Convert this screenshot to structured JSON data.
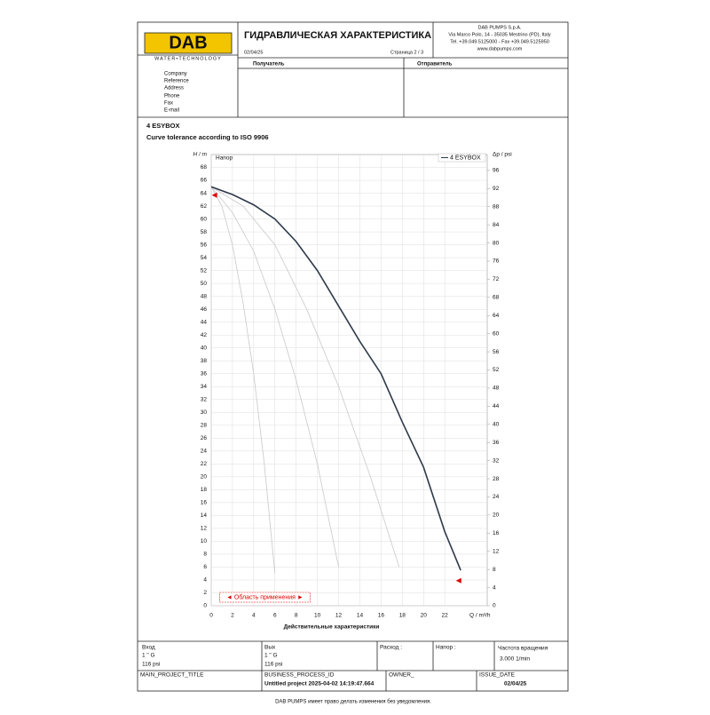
{
  "header": {
    "logo": "DAB",
    "logo_subtitle": "WATER•TECHNOLOGY",
    "title": "ГИДРАВЛИЧЕСКАЯ ХАРАКТЕРИСТИКА",
    "date": "02/04/25",
    "page": "Страница 2 / 3",
    "company_lines": [
      "DAB PUMPS S.p.A.",
      "Via Marco Polo, 14 - 35035 Mestrino (PD), Italy",
      "Tel. +39.049.5125000 - Fax +39.049.5125950",
      "www.dabpumps.com"
    ]
  },
  "recipient_label": "Получатель",
  "sender_label": "Отправитель",
  "contact_fields": [
    "Company",
    "Reference",
    "Address",
    "Phone",
    "Fax",
    "E-mail"
  ],
  "product": "4 ESYBOX",
  "tolerance_note": "Curve tolerance according to ISO 9906",
  "chart_data": {
    "type": "line",
    "x_label": "Q / m³/h",
    "y_label": "H / m",
    "y2_label": "Δp / psi",
    "plot_label": "Напор",
    "caption": "Действительные характеристики",
    "xlim": [
      0,
      26
    ],
    "xticks": [
      0,
      2,
      4,
      6,
      8,
      10,
      12,
      14,
      16,
      18,
      20,
      22
    ],
    "ylim": [
      0,
      70
    ],
    "yticks": [
      0,
      2,
      4,
      6,
      8,
      10,
      12,
      14,
      16,
      18,
      20,
      22,
      24,
      26,
      28,
      30,
      32,
      34,
      36,
      38,
      40,
      42,
      44,
      46,
      48,
      50,
      52,
      54,
      56,
      58,
      60,
      62,
      64,
      66,
      68
    ],
    "y2lim": [
      0,
      99.5
    ],
    "y2ticks": [
      0,
      4,
      8,
      12,
      16,
      20,
      24,
      28,
      32,
      36,
      40,
      44,
      48,
      52,
      56,
      60,
      64,
      68,
      72,
      76,
      80,
      84,
      88,
      92,
      96
    ],
    "grid": true,
    "legend": "top-right",
    "series": [
      {
        "color": "#c8c8c8",
        "x": [
          0,
          1,
          2,
          3,
          4,
          5,
          6
        ],
        "values": [
          65,
          62,
          56,
          47,
          36,
          22,
          5
        ]
      },
      {
        "color": "#c8c8c8",
        "x": [
          0,
          2,
          4,
          6,
          8,
          10,
          12
        ],
        "values": [
          65,
          61,
          55,
          46,
          35,
          22,
          6
        ]
      },
      {
        "color": "#c8c8c8",
        "x": [
          0,
          3,
          6,
          9,
          12,
          15,
          17.7
        ],
        "values": [
          65,
          62,
          56,
          46,
          34,
          20,
          6
        ]
      },
      {
        "name": "4 ESYBOX",
        "color": "#2e3a4a",
        "x": [
          0,
          2,
          4,
          6,
          8,
          10,
          12,
          14,
          16,
          18,
          20,
          22,
          23.5
        ],
        "values": [
          65,
          63.8,
          62.2,
          60,
          56.5,
          52,
          46.5,
          41,
          36,
          28.5,
          21.5,
          11.5,
          5.5
        ]
      }
    ],
    "markers": [
      {
        "x": 0.3,
        "y": 63.7,
        "color": "#e00000"
      },
      {
        "x": 23.3,
        "y": 3.9,
        "color": "#e00000"
      }
    ],
    "application_range": {
      "label": "◄ Область применения ►",
      "x": [
        0.8,
        9.3
      ]
    }
  },
  "footer_table": {
    "inlet_label": "Вход",
    "inlet_size": "1 \" G",
    "inlet_pressure": "116 psi",
    "outlet_label": "Вых",
    "outlet_size": "1 \" G",
    "outlet_pressure": "116 psi",
    "flow_label": "Расход :",
    "head_label": "Напор :",
    "speed_label": "Частота вращения",
    "speed_value": "3.000 1/min",
    "main_project_title": "MAIN_PROJECT_TITLE",
    "business_process_id": "BUSINESS_PROCESS_ID",
    "project": "Untitled project 2025-04-02 14:19:47.664",
    "owner": "OWNER_",
    "issue_date_label": "ISSUE_DATE",
    "issue_date": "02/04/25"
  },
  "disclaimer": "DAB PUMPS имеет право делать изменения без уведомления."
}
